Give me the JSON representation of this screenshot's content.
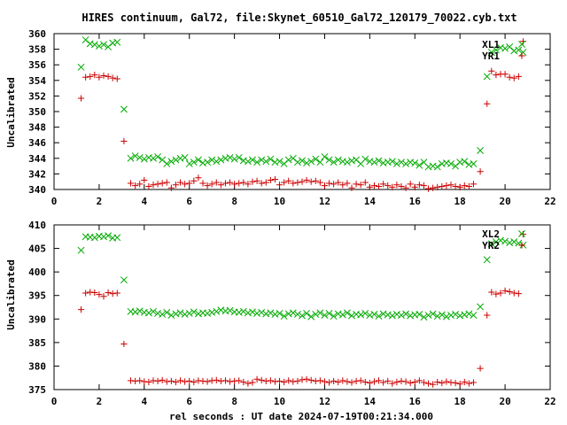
{
  "figure_title": "HIRES continuum, Gal72, file:Skynet_60510_Gal72_120179_70022.cyb.txt",
  "x_axis_label": "rel seconds : UT date 2024-07-19T00:21:34.000",
  "colors": {
    "series_1": "#cc0000",
    "series_2": "#00aa00",
    "axes": "#000000"
  },
  "chart_data": [
    {
      "type": "scatter",
      "title": "",
      "xlabel": "",
      "ylabel": "Uncalibrated",
      "xlim": [
        0,
        22
      ],
      "ylim": [
        340,
        360
      ],
      "xticks": [
        0,
        2,
        4,
        6,
        8,
        10,
        12,
        14,
        16,
        18,
        20,
        22
      ],
      "yticks": [
        340,
        342,
        344,
        346,
        348,
        350,
        352,
        354,
        356,
        358,
        360
      ],
      "grid": false,
      "legend_position": "top-right",
      "series": [
        {
          "name": "XL1",
          "marker": "x",
          "color": "#00aa00",
          "x": [
            1.2,
            1.4,
            1.6,
            1.8,
            2.0,
            2.2,
            2.4,
            2.6,
            2.8,
            3.1,
            3.4,
            3.6,
            3.8,
            4.0,
            4.2,
            4.4,
            4.6,
            4.8,
            5.0,
            5.2,
            5.4,
            5.6,
            5.8,
            6.0,
            6.2,
            6.4,
            6.6,
            6.8,
            7.0,
            7.2,
            7.4,
            7.6,
            7.8,
            8.0,
            8.2,
            8.4,
            8.6,
            8.8,
            9.0,
            9.2,
            9.4,
            9.6,
            9.8,
            10.0,
            10.2,
            10.4,
            10.6,
            10.8,
            11.0,
            11.2,
            11.4,
            11.6,
            11.8,
            12.0,
            12.2,
            12.4,
            12.6,
            12.8,
            13.0,
            13.2,
            13.4,
            13.6,
            13.8,
            14.0,
            14.2,
            14.4,
            14.6,
            14.8,
            15.0,
            15.2,
            15.4,
            15.6,
            15.8,
            16.0,
            16.2,
            16.4,
            16.6,
            16.8,
            17.0,
            17.2,
            17.4,
            17.6,
            17.8,
            18.0,
            18.2,
            18.4,
            18.6,
            18.9,
            19.2,
            19.4,
            19.6,
            19.8,
            20.0,
            20.2,
            20.4,
            20.6,
            20.8
          ],
          "y": [
            355.7,
            359.2,
            358.7,
            358.6,
            358.4,
            358.6,
            358.3,
            358.8,
            358.9,
            350.3,
            344.0,
            344.3,
            344.1,
            343.9,
            344.1,
            344.0,
            344.2,
            343.8,
            343.3,
            343.6,
            343.8,
            344.0,
            344.1,
            343.3,
            343.5,
            343.8,
            343.4,
            343.5,
            343.8,
            343.6,
            343.8,
            344.0,
            344.1,
            343.9,
            344.1,
            343.7,
            343.6,
            343.8,
            343.5,
            343.8,
            343.6,
            343.9,
            343.5,
            343.6,
            343.3,
            343.8,
            344.0,
            343.5,
            343.7,
            343.4,
            343.6,
            343.9,
            343.5,
            344.2,
            343.8,
            343.5,
            343.8,
            343.6,
            343.5,
            343.7,
            343.8,
            343.3,
            343.9,
            343.6,
            343.5,
            343.7,
            343.4,
            343.5,
            343.6,
            343.3,
            343.5,
            343.3,
            343.5,
            343.4,
            343.1,
            343.5,
            342.9,
            343.0,
            342.9,
            343.3,
            343.4,
            343.3,
            343.0,
            343.5,
            343.6,
            343.2,
            343.3,
            345.0,
            354.5,
            357.6,
            357.9,
            358.2,
            358.1,
            358.3,
            357.8,
            357.9,
            357.6
          ]
        },
        {
          "name": "YR1",
          "marker": "+",
          "color": "#cc0000",
          "x": [
            1.2,
            1.4,
            1.6,
            1.8,
            2.0,
            2.2,
            2.4,
            2.6,
            2.8,
            3.1,
            3.4,
            3.6,
            3.8,
            4.0,
            4.2,
            4.4,
            4.6,
            4.8,
            5.0,
            5.2,
            5.4,
            5.6,
            5.8,
            6.0,
            6.2,
            6.4,
            6.6,
            6.8,
            7.0,
            7.2,
            7.4,
            7.6,
            7.8,
            8.0,
            8.2,
            8.4,
            8.6,
            8.8,
            9.0,
            9.2,
            9.4,
            9.6,
            9.8,
            10.0,
            10.2,
            10.4,
            10.6,
            10.8,
            11.0,
            11.2,
            11.4,
            11.6,
            11.8,
            12.0,
            12.2,
            12.4,
            12.6,
            12.8,
            13.0,
            13.2,
            13.4,
            13.6,
            13.8,
            14.0,
            14.2,
            14.4,
            14.6,
            14.8,
            15.0,
            15.2,
            15.4,
            15.6,
            15.8,
            16.0,
            16.2,
            16.4,
            16.6,
            16.8,
            17.0,
            17.2,
            17.4,
            17.6,
            17.8,
            18.0,
            18.2,
            18.4,
            18.6,
            18.9,
            19.2,
            19.4,
            19.6,
            19.8,
            20.0,
            20.2,
            20.4,
            20.6,
            20.8
          ],
          "y": [
            351.7,
            354.4,
            354.5,
            354.7,
            354.4,
            354.6,
            354.5,
            354.3,
            354.2,
            346.2,
            340.8,
            340.5,
            340.7,
            341.2,
            340.4,
            340.6,
            340.7,
            340.8,
            340.9,
            340.2,
            340.6,
            340.9,
            340.7,
            340.8,
            341.1,
            341.5,
            340.8,
            340.5,
            340.7,
            340.9,
            340.6,
            340.8,
            340.9,
            340.7,
            340.8,
            340.9,
            340.7,
            341.0,
            341.1,
            340.8,
            340.9,
            341.2,
            341.3,
            340.6,
            340.9,
            341.1,
            340.8,
            340.9,
            341.0,
            341.2,
            341.0,
            341.1,
            340.9,
            340.5,
            340.8,
            340.7,
            340.9,
            340.6,
            340.8,
            340.2,
            340.7,
            340.6,
            340.9,
            340.3,
            340.5,
            340.4,
            340.7,
            340.5,
            340.3,
            340.6,
            340.4,
            340.2,
            340.7,
            340.3,
            340.6,
            340.5,
            340.1,
            340.2,
            340.3,
            340.4,
            340.5,
            340.6,
            340.4,
            340.3,
            340.5,
            340.4,
            340.7,
            342.3,
            351.0,
            355.2,
            354.7,
            354.8,
            354.8,
            354.4,
            354.3,
            354.5,
            359.0
          ]
        }
      ]
    },
    {
      "type": "scatter",
      "title": "",
      "xlabel": "rel seconds : UT date 2024-07-19T00:21:34.000",
      "ylabel": "Uncalibrated",
      "xlim": [
        0,
        22
      ],
      "ylim": [
        375,
        410
      ],
      "xticks": [
        0,
        2,
        4,
        6,
        8,
        10,
        12,
        14,
        16,
        18,
        20,
        22
      ],
      "yticks": [
        375,
        380,
        385,
        390,
        395,
        400,
        405,
        410
      ],
      "grid": false,
      "legend_position": "top-right",
      "series": [
        {
          "name": "XL2",
          "marker": "x",
          "color": "#00aa00",
          "x": [
            1.2,
            1.4,
            1.6,
            1.8,
            2.0,
            2.2,
            2.4,
            2.6,
            2.8,
            3.1,
            3.4,
            3.6,
            3.8,
            4.0,
            4.2,
            4.4,
            4.6,
            4.8,
            5.0,
            5.2,
            5.4,
            5.6,
            5.8,
            6.0,
            6.2,
            6.4,
            6.6,
            6.8,
            7.0,
            7.2,
            7.4,
            7.6,
            7.8,
            8.0,
            8.2,
            8.4,
            8.6,
            8.8,
            9.0,
            9.2,
            9.4,
            9.6,
            9.8,
            10.0,
            10.2,
            10.4,
            10.6,
            10.8,
            11.0,
            11.2,
            11.4,
            11.6,
            11.8,
            12.0,
            12.2,
            12.4,
            12.6,
            12.8,
            13.0,
            13.2,
            13.4,
            13.6,
            13.8,
            14.0,
            14.2,
            14.4,
            14.6,
            14.8,
            15.0,
            15.2,
            15.4,
            15.6,
            15.8,
            16.0,
            16.2,
            16.4,
            16.6,
            16.8,
            17.0,
            17.2,
            17.4,
            17.6,
            17.8,
            18.0,
            18.2,
            18.4,
            18.6,
            18.9,
            19.2,
            19.4,
            19.6,
            19.8,
            20.0,
            20.2,
            20.4,
            20.6,
            20.8
          ],
          "y": [
            404.6,
            407.5,
            407.4,
            407.3,
            407.6,
            407.5,
            407.7,
            407.2,
            407.3,
            398.3,
            391.6,
            391.5,
            391.7,
            391.4,
            391.3,
            391.6,
            391.2,
            391.0,
            391.4,
            390.8,
            391.1,
            391.3,
            391.0,
            391.2,
            391.5,
            391.1,
            391.3,
            391.2,
            391.4,
            391.6,
            391.9,
            391.7,
            391.8,
            391.5,
            391.4,
            391.6,
            391.3,
            391.5,
            391.2,
            391.4,
            391.1,
            391.3,
            391.0,
            391.2,
            390.6,
            391.1,
            391.3,
            391.0,
            390.7,
            391.2,
            390.5,
            391.0,
            391.3,
            390.8,
            391.2,
            390.6,
            391.1,
            390.9,
            391.3,
            390.7,
            391.0,
            390.9,
            391.2,
            390.8,
            391.0,
            390.6,
            391.1,
            390.9,
            390.7,
            391.0,
            390.8,
            391.1,
            390.7,
            390.9,
            391.0,
            390.4,
            390.8,
            391.1,
            390.6,
            390.9,
            390.5,
            390.8,
            391.0,
            390.7,
            390.9,
            391.1,
            390.8,
            392.6,
            402.6,
            406.0,
            406.4,
            406.7,
            406.5,
            406.2,
            406.4,
            406.1,
            405.7
          ]
        },
        {
          "name": "YR2",
          "marker": "+",
          "color": "#cc0000",
          "x": [
            1.2,
            1.4,
            1.6,
            1.8,
            2.0,
            2.2,
            2.4,
            2.6,
            2.8,
            3.1,
            3.4,
            3.6,
            3.8,
            4.0,
            4.2,
            4.4,
            4.6,
            4.8,
            5.0,
            5.2,
            5.4,
            5.6,
            5.8,
            6.0,
            6.2,
            6.4,
            6.6,
            6.8,
            7.0,
            7.2,
            7.4,
            7.6,
            7.8,
            8.0,
            8.2,
            8.4,
            8.6,
            8.8,
            9.0,
            9.2,
            9.4,
            9.6,
            9.8,
            10.0,
            10.2,
            10.4,
            10.6,
            10.8,
            11.0,
            11.2,
            11.4,
            11.6,
            11.8,
            12.0,
            12.2,
            12.4,
            12.6,
            12.8,
            13.0,
            13.2,
            13.4,
            13.6,
            13.8,
            14.0,
            14.2,
            14.4,
            14.6,
            14.8,
            15.0,
            15.2,
            15.4,
            15.6,
            15.8,
            16.0,
            16.2,
            16.4,
            16.6,
            16.8,
            17.0,
            17.2,
            17.4,
            17.6,
            17.8,
            18.0,
            18.2,
            18.4,
            18.6,
            18.9,
            19.2,
            19.4,
            19.6,
            19.8,
            20.0,
            20.2,
            20.4,
            20.6,
            20.8
          ],
          "y": [
            392.0,
            395.5,
            395.7,
            395.6,
            395.2,
            394.8,
            395.6,
            395.4,
            395.5,
            384.7,
            376.9,
            376.8,
            376.9,
            376.7,
            376.6,
            376.9,
            376.8,
            377.0,
            376.7,
            376.8,
            376.6,
            376.9,
            376.7,
            376.8,
            376.6,
            376.9,
            376.8,
            376.7,
            376.9,
            377.0,
            376.8,
            376.9,
            376.7,
            376.8,
            376.9,
            376.6,
            376.3,
            376.5,
            377.2,
            377.0,
            376.8,
            376.9,
            376.7,
            376.8,
            376.6,
            376.9,
            376.7,
            376.8,
            377.1,
            377.2,
            377.0,
            376.8,
            376.9,
            376.7,
            376.5,
            376.8,
            376.6,
            376.9,
            376.7,
            376.5,
            376.8,
            376.9,
            376.6,
            376.4,
            376.7,
            376.9,
            376.5,
            376.8,
            376.3,
            376.6,
            376.8,
            376.7,
            376.4,
            376.6,
            376.9,
            376.5,
            376.3,
            376.1,
            376.6,
            376.4,
            376.7,
            376.5,
            376.4,
            376.2,
            376.6,
            376.3,
            376.5,
            379.5,
            390.8,
            395.7,
            395.3,
            395.5,
            396.0,
            395.8,
            395.5,
            395.4,
            408.0
          ]
        }
      ]
    }
  ]
}
